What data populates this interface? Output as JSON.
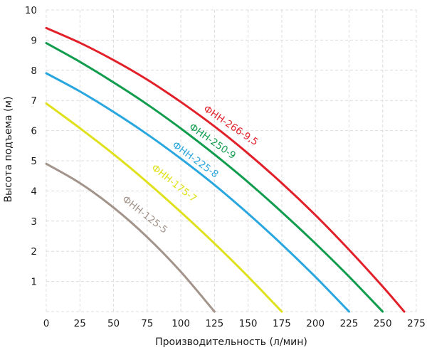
{
  "chart_data": {
    "type": "line",
    "title": "",
    "xlabel": "Производительность (л/мин)",
    "ylabel": "Высота подъема (м)",
    "xlim": [
      0,
      275
    ],
    "ylim": [
      0,
      10
    ],
    "x_ticks": [
      0,
      25,
      50,
      75,
      100,
      125,
      150,
      175,
      200,
      225,
      250,
      275
    ],
    "y_ticks": [
      1,
      2,
      3,
      4,
      5,
      6,
      7,
      8,
      9,
      10
    ],
    "grid": "dashed",
    "legend_position": "inline-rotated-labels",
    "series": [
      {
        "name": "ФНН-266-9,5",
        "color": "#e2202a",
        "max_head_m": 9.5,
        "max_flow_l_min": 266,
        "points": [
          [
            0,
            9.4
          ],
          [
            25,
            8.91
          ],
          [
            50,
            8.34
          ],
          [
            75,
            7.69
          ],
          [
            100,
            6.95
          ],
          [
            125,
            6.14
          ],
          [
            150,
            5.24
          ],
          [
            175,
            4.26
          ],
          [
            200,
            3.2
          ],
          [
            225,
            2.05
          ],
          [
            250,
            0.83
          ],
          [
            266,
            0
          ]
        ]
      },
      {
        "name": "ФНН-250-9",
        "color": "#119c4e",
        "max_head_m": 9,
        "max_flow_l_min": 250,
        "points": [
          [
            0,
            8.9
          ],
          [
            25,
            8.28
          ],
          [
            50,
            7.6
          ],
          [
            75,
            6.87
          ],
          [
            100,
            6.07
          ],
          [
            125,
            5.21
          ],
          [
            150,
            4.29
          ],
          [
            175,
            3.3
          ],
          [
            200,
            2.26
          ],
          [
            225,
            1.16
          ],
          [
            250,
            0
          ]
        ]
      },
      {
        "name": "ФНН-225-8",
        "color": "#2ba7e0",
        "max_head_m": 8,
        "max_flow_l_min": 225,
        "points": [
          [
            0,
            7.9
          ],
          [
            25,
            7.3
          ],
          [
            50,
            6.62
          ],
          [
            75,
            5.88
          ],
          [
            100,
            5.07
          ],
          [
            125,
            4.2
          ],
          [
            150,
            3.25
          ],
          [
            175,
            2.23
          ],
          [
            200,
            1.15
          ],
          [
            225,
            0
          ]
        ]
      },
      {
        "name": "ФНН-175-7",
        "color": "#dfe11c",
        "max_head_m": 7,
        "max_flow_l_min": 175,
        "points": [
          [
            0,
            6.9
          ],
          [
            25,
            6.08
          ],
          [
            50,
            5.22
          ],
          [
            75,
            4.29
          ],
          [
            100,
            3.3
          ],
          [
            125,
            2.26
          ],
          [
            150,
            1.16
          ],
          [
            175,
            0
          ]
        ]
      },
      {
        "name": "ФНН-125-5",
        "color": "#a3948b",
        "max_head_m": 5,
        "max_flow_l_min": 125,
        "points": [
          [
            0,
            4.9
          ],
          [
            25,
            4.26
          ],
          [
            50,
            3.45
          ],
          [
            75,
            2.47
          ],
          [
            100,
            1.32
          ],
          [
            125,
            0
          ]
        ]
      }
    ]
  },
  "colors": {
    "grid": "#dcdcdc",
    "tick_text": "#1c1c1c",
    "background": "#ffffff"
  }
}
